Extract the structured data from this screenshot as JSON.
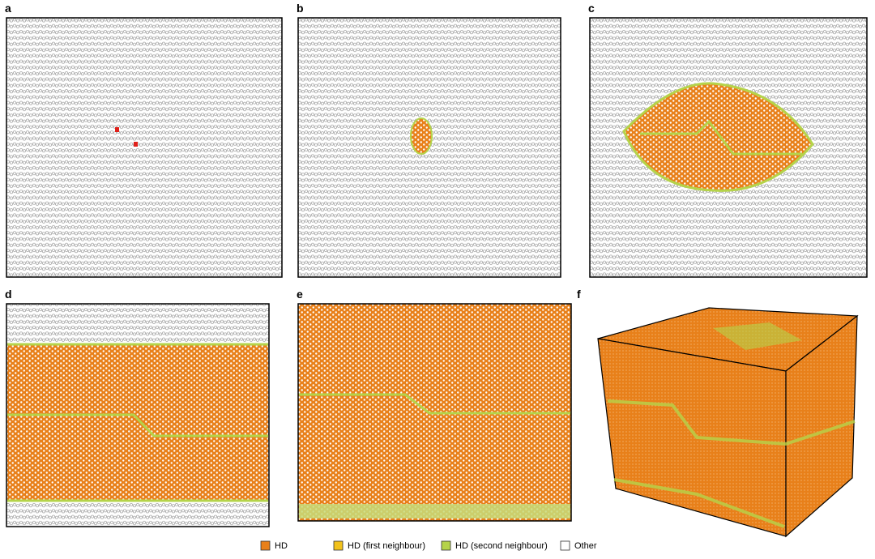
{
  "panels": [
    {
      "label": "a"
    },
    {
      "label": "b"
    },
    {
      "label": "c"
    },
    {
      "label": "d"
    },
    {
      "label": "e"
    },
    {
      "label": "f"
    }
  ],
  "legend": [
    {
      "label": "HD",
      "color": "#e8801a"
    },
    {
      "label": "HD (first neighbour)",
      "color": "#f2c21c"
    },
    {
      "label": "HD (second neighbour)",
      "color": "#b5d34a"
    },
    {
      "label": "Other",
      "color": "#ffffff"
    }
  ]
}
